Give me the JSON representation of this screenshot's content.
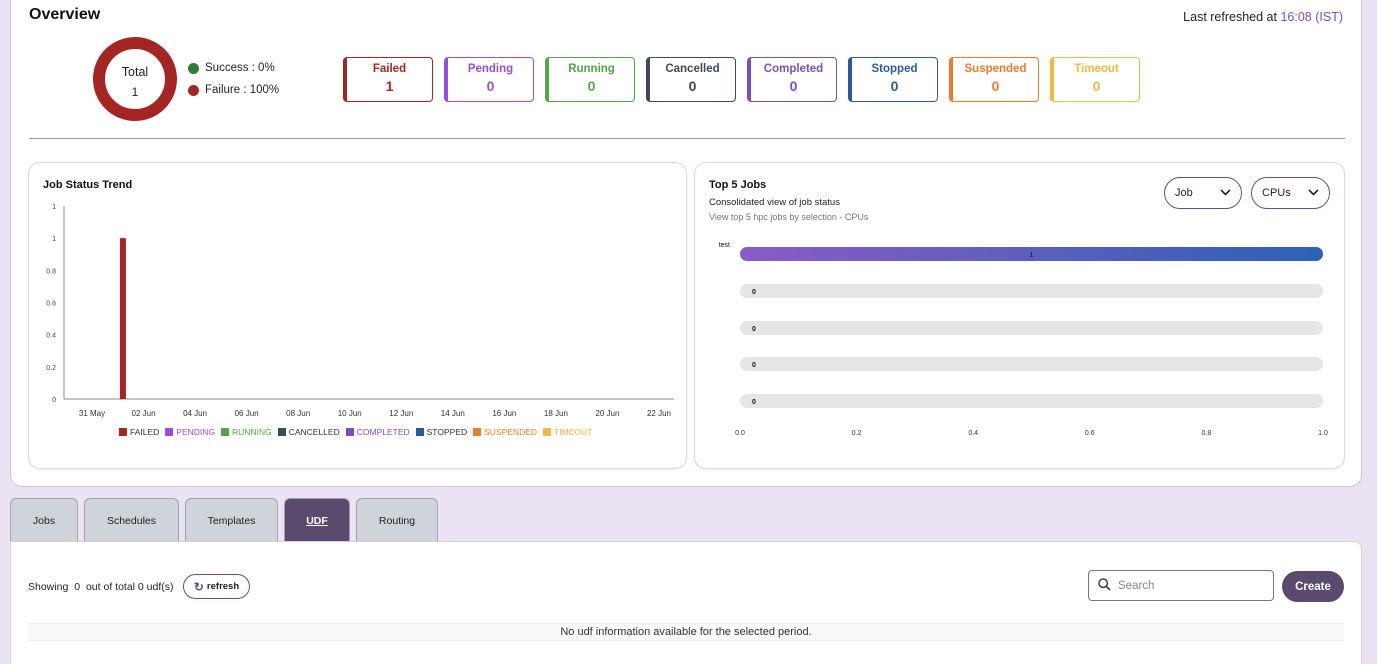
{
  "overview": {
    "title": "Overview",
    "last_refreshed_label": "Last refreshed at",
    "last_refreshed_time": "16:08 (IST)",
    "donut": {
      "label": "Total",
      "value": "1",
      "failure_fraction": 1.0
    },
    "legend": [
      {
        "label": "Success : 0%",
        "color": "#2f7d32"
      },
      {
        "label": "Failure : 100%",
        "color": "#a52523"
      }
    ],
    "status_boxes": [
      {
        "name": "Failed",
        "count": "1",
        "color": "#a52523"
      },
      {
        "name": "Pending",
        "count": "0",
        "color": "#9b4de0"
      },
      {
        "name": "Running",
        "count": "0",
        "color": "#4fa845"
      },
      {
        "name": "Cancelled",
        "count": "0",
        "color": "#3d4a57"
      },
      {
        "name": "Completed",
        "count": "0",
        "color": "#7c4fc0"
      },
      {
        "name": "Stopped",
        "count": "0",
        "color": "#2d5a9e"
      },
      {
        "name": "Suspended",
        "count": "0",
        "color": "#f07a2a"
      },
      {
        "name": "Timeout",
        "count": "0",
        "color": "#f5b73e"
      }
    ]
  },
  "job_status_trend": {
    "title": "Job Status Trend",
    "chart_data": {
      "type": "bar",
      "x_ticks": [
        "31 May",
        "02 Jun",
        "04 Jun",
        "06 Jun",
        "08 Jun",
        "10 Jun",
        "12 Jun",
        "14 Jun",
        "16 Jun",
        "18 Jun",
        "20 Jun",
        "22 Jun"
      ],
      "y_ticks": [
        "0",
        "0.2",
        "0.4",
        "0.6",
        "0.8",
        "1",
        "1"
      ],
      "ylim": [
        0,
        1.2
      ],
      "bars": [
        {
          "x": "01 Jun",
          "series": "FAILED",
          "value": 1
        }
      ],
      "legend": [
        {
          "name": "FAILED",
          "color": "#a52523"
        },
        {
          "name": "PENDING",
          "color": "#9b4de0"
        },
        {
          "name": "RUNNING",
          "color": "#4fa845"
        },
        {
          "name": "CANCELLED",
          "color": "#3d4a57"
        },
        {
          "name": "COMPLETED",
          "color": "#7c4fc0"
        },
        {
          "name": "STOPPED",
          "color": "#2d5a9e"
        },
        {
          "name": "SUSPENDED",
          "color": "#f07a2a"
        },
        {
          "name": "TIMEOUT",
          "color": "#f5b73e"
        }
      ]
    }
  },
  "top5": {
    "title": "Top 5 Jobs",
    "subtitle": "Consolidated view of job status",
    "subtitle2": "View top 5 hpc jobs by selection - CPUs",
    "select_job": "Job",
    "select_metric": "CPUs",
    "chart_data": {
      "type": "bar",
      "orientation": "horizontal",
      "categories": [
        "test",
        "",
        "",
        "",
        ""
      ],
      "values": [
        1,
        0,
        0,
        0,
        0
      ],
      "value_labels": [
        "1",
        "0",
        "0",
        "0",
        "0"
      ],
      "x_ticks": [
        "0.0",
        "0.2",
        "0.4",
        "0.6",
        "0.8",
        "1.0"
      ],
      "xlim": [
        0,
        1
      ]
    }
  },
  "tabs": [
    {
      "label": "Jobs",
      "active": false
    },
    {
      "label": "Schedules",
      "active": false
    },
    {
      "label": "Templates",
      "active": false
    },
    {
      "label": "UDF",
      "active": true
    },
    {
      "label": "Routing",
      "active": false
    }
  ],
  "udf": {
    "showing_prefix": "Showing",
    "showing_count": "0",
    "showing_suffix": "out of total 0 udf(s)",
    "refresh_label": "refresh",
    "search_placeholder": "Search",
    "create_label": "Create",
    "empty_message": "No udf information available for the selected period."
  }
}
